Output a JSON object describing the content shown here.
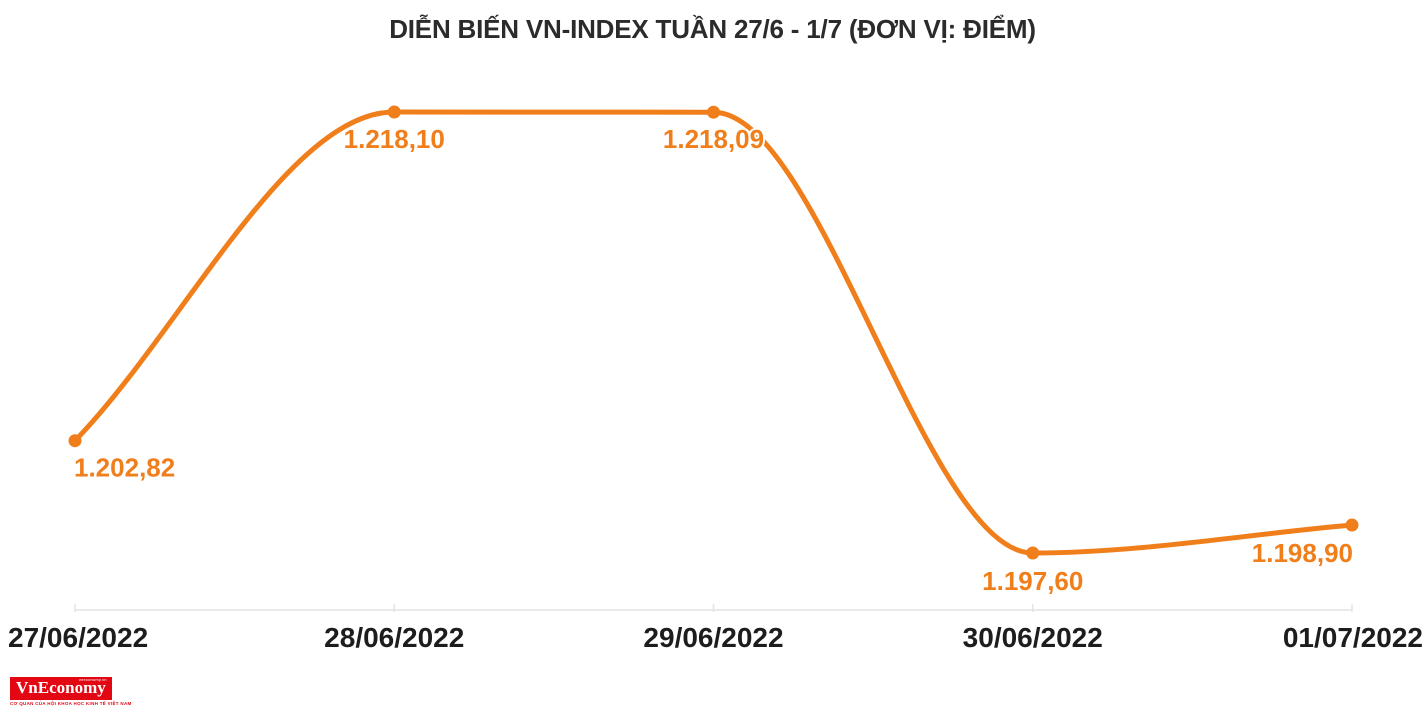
{
  "title": "DIỄN BIẾN VN-INDEX TUẦN 27/6 - 1/7 (ĐƠN VỊ: ĐIỂM)",
  "chart_data": {
    "type": "line",
    "title": "DIỄN BIẾN VN-INDEX TUẦN 27/6 - 1/7 (ĐƠN VỊ: ĐIỂM)",
    "unit": "ĐIỂM",
    "categories": [
      "27/06/2022",
      "28/06/2022",
      "29/06/2022",
      "30/06/2022",
      "01/07/2022"
    ],
    "series": [
      {
        "name": "VN-INDEX",
        "values": [
          1202.82,
          1218.1,
          1218.09,
          1197.6,
          1198.9
        ]
      }
    ],
    "point_labels": [
      "1.202,82",
      "1.218,10",
      "1.218,09",
      "1.197,60",
      "1.198,90"
    ],
    "ylim": [
      1197.6,
      1218.1
    ],
    "grid": false,
    "legend": "none",
    "smoothing": "monotone",
    "line_color": "#F07E1A",
    "point_label_color": "#F07E1A",
    "axis_line_color": "#E4E4E4",
    "category_label_color": "#1D1D1D",
    "title_color": "#2B2B2B"
  },
  "logo": {
    "name": "VnEconomy",
    "site": "vneconomy.vn",
    "tagline": "CƠ QUAN CỦA HỘI KHOA HỌC KINH TẾ VIỆT NAM",
    "background": "#E30613",
    "text_color": "#FFFFFF"
  }
}
